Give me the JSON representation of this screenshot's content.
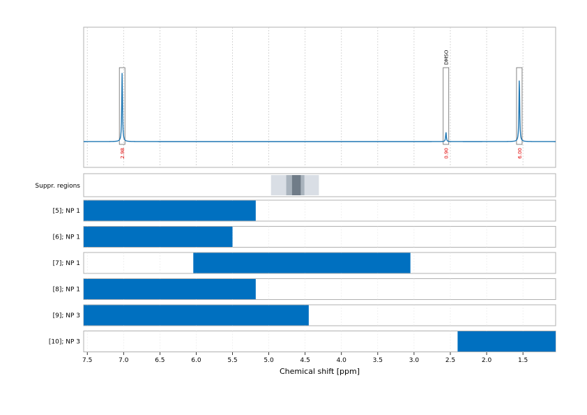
{
  "chart_data": {
    "type": "line",
    "x_axis": {
      "label": "Chemical shift [ppm]",
      "range": [
        7.55,
        1.05
      ],
      "reversed": true,
      "ticks": [
        7.5,
        7.0,
        6.5,
        6.0,
        5.5,
        5.0,
        4.5,
        4.0,
        3.5,
        3.0,
        2.5,
        2.0,
        1.5
      ],
      "tick_labels": [
        "7.5",
        "7.0",
        "6.5",
        "6.0",
        "5.5",
        "5.0",
        "4.5",
        "4.0",
        "3.5",
        "3.0",
        "2.5",
        "2.0",
        "1.5"
      ]
    },
    "grid": true,
    "spectrum": {
      "line_color": "#1f77b4",
      "peaks": [
        {
          "ppm": 7.02,
          "height": 0.95,
          "integral": "2.98",
          "label": ""
        },
        {
          "ppm": 2.56,
          "height": 0.13,
          "integral": "0.90",
          "label": "DMSO"
        },
        {
          "ppm": 1.55,
          "height": 0.88,
          "integral": "6.00",
          "label": ""
        }
      ]
    },
    "suppressed_regions": {
      "label": "Suppr. regions",
      "bands": [
        {
          "from": 4.97,
          "to": 4.31,
          "shade": "#d9dee5"
        },
        {
          "from": 4.76,
          "to": 4.51,
          "shade": "#a9b3bd"
        },
        {
          "from": 4.68,
          "to": 4.56,
          "shade": "#707c88"
        }
      ]
    },
    "series": [
      {
        "name": "[5]; NP 1",
        "from": 7.55,
        "to": 5.18
      },
      {
        "name": "[6]; NP 1",
        "from": 7.55,
        "to": 5.5
      },
      {
        "name": "[7]; NP 1",
        "from": 6.04,
        "to": 3.05
      },
      {
        "name": "[8]; NP 1",
        "from": 7.55,
        "to": 5.18
      },
      {
        "name": "[9]; NP 3",
        "from": 7.55,
        "to": 4.45
      },
      {
        "name": "[10]; NP 3",
        "from": 2.4,
        "to": 1.05
      }
    ],
    "colors": {
      "bar": "#0070c0",
      "integral_text": "#e00000",
      "frame": "#b0b0b0",
      "grid": "#cccccc"
    }
  }
}
